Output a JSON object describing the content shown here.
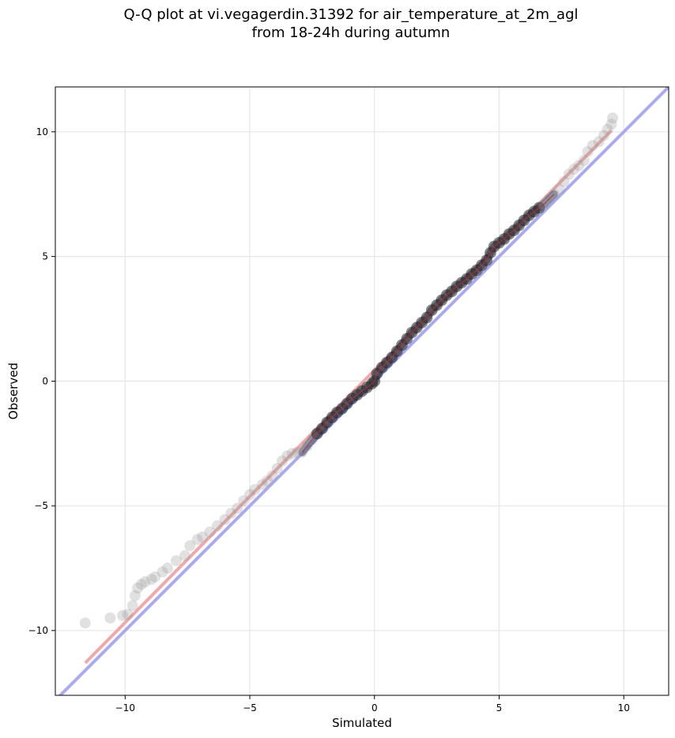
{
  "chart_data": {
    "type": "scatter",
    "title_line_1": "Q-Q plot at vi.vegagerdin.31392 for air_temperature_at_2m_agl",
    "title_line_2": "from 18-24h during autumn",
    "xlabel": "Simulated",
    "ylabel": "Observed",
    "xlim": [
      -12.8,
      11.8
    ],
    "ylim": [
      -12.6,
      11.8
    ],
    "x_ticks": [
      -10,
      -5,
      0,
      5,
      10
    ],
    "y_ticks": [
      -10,
      -5,
      0,
      5,
      10
    ],
    "x_tick_labels": [
      "−10",
      "−5",
      "0",
      "5",
      "10"
    ],
    "y_tick_labels": [
      "−10",
      "−5",
      "0",
      "5",
      "10"
    ],
    "grid": true,
    "identity_line": {
      "x": [
        -12.8,
        11.8
      ],
      "y": [
        -12.8,
        11.8
      ],
      "color": "#aaaaf0"
    },
    "fit_line": {
      "x": [
        -11.6,
        9.5
      ],
      "y": [
        -11.3,
        10.05
      ],
      "color": "#f0a8a8"
    },
    "colors": {
      "points": "#bdbdbd",
      "dense": "#1f2a55",
      "accent": "#b03030"
    },
    "quantiles": [
      [
        -11.6,
        -9.7
      ],
      [
        -10.6,
        -9.5
      ],
      [
        -10.1,
        -9.4
      ],
      [
        -9.9,
        -9.35
      ],
      [
        -9.7,
        -9.0
      ],
      [
        -9.6,
        -8.6
      ],
      [
        -9.5,
        -8.3
      ],
      [
        -9.35,
        -8.15
      ],
      [
        -9.2,
        -8.05
      ],
      [
        -8.95,
        -7.95
      ],
      [
        -8.8,
        -7.85
      ],
      [
        -8.5,
        -7.65
      ],
      [
        -8.3,
        -7.5
      ],
      [
        -7.95,
        -7.2
      ],
      [
        -7.6,
        -7.0
      ],
      [
        -7.4,
        -6.6
      ],
      [
        -7.1,
        -6.35
      ],
      [
        -6.9,
        -6.25
      ],
      [
        -6.6,
        -6.05
      ],
      [
        -6.3,
        -5.8
      ],
      [
        -6.0,
        -5.55
      ],
      [
        -5.75,
        -5.3
      ],
      [
        -5.5,
        -5.1
      ],
      [
        -5.25,
        -4.8
      ],
      [
        -5.0,
        -4.55
      ],
      [
        -4.8,
        -4.35
      ],
      [
        -4.5,
        -4.15
      ],
      [
        -4.3,
        -4.0
      ],
      [
        -4.1,
        -3.8
      ],
      [
        -3.9,
        -3.5
      ],
      [
        -3.7,
        -3.2
      ],
      [
        -3.5,
        -3.0
      ],
      [
        -3.3,
        -2.9
      ],
      [
        -3.1,
        -2.85
      ],
      [
        -2.9,
        -2.85
      ],
      [
        -2.7,
        -2.6
      ],
      [
        -2.5,
        -2.35
      ],
      [
        -2.3,
        -2.1
      ],
      [
        -2.1,
        -1.9
      ],
      [
        -1.9,
        -1.65
      ],
      [
        -1.7,
        -1.45
      ],
      [
        -1.5,
        -1.25
      ],
      [
        -1.3,
        -1.1
      ],
      [
        -1.1,
        -0.9
      ],
      [
        -0.9,
        -0.7
      ],
      [
        -0.7,
        -0.55
      ],
      [
        -0.5,
        -0.4
      ],
      [
        -0.3,
        -0.25
      ],
      [
        -0.1,
        -0.1
      ],
      [
        0.0,
        0.0
      ],
      [
        0.1,
        0.3
      ],
      [
        0.3,
        0.55
      ],
      [
        0.5,
        0.75
      ],
      [
        0.7,
        0.95
      ],
      [
        0.9,
        1.2
      ],
      [
        1.1,
        1.45
      ],
      [
        1.3,
        1.7
      ],
      [
        1.5,
        1.95
      ],
      [
        1.7,
        2.15
      ],
      [
        1.9,
        2.35
      ],
      [
        2.1,
        2.55
      ],
      [
        2.3,
        2.85
      ],
      [
        2.5,
        3.05
      ],
      [
        2.7,
        3.25
      ],
      [
        2.9,
        3.45
      ],
      [
        3.1,
        3.6
      ],
      [
        3.3,
        3.8
      ],
      [
        3.5,
        3.95
      ],
      [
        3.7,
        4.1
      ],
      [
        3.9,
        4.3
      ],
      [
        4.1,
        4.45
      ],
      [
        4.3,
        4.65
      ],
      [
        4.5,
        4.85
      ],
      [
        4.65,
        5.15
      ],
      [
        4.8,
        5.4
      ],
      [
        5.0,
        5.55
      ],
      [
        5.2,
        5.7
      ],
      [
        5.4,
        5.9
      ],
      [
        5.6,
        6.05
      ],
      [
        5.8,
        6.25
      ],
      [
        6.0,
        6.45
      ],
      [
        6.2,
        6.65
      ],
      [
        6.4,
        6.8
      ],
      [
        6.6,
        6.95
      ],
      [
        6.8,
        7.1
      ],
      [
        7.0,
        7.3
      ],
      [
        7.2,
        7.5
      ],
      [
        7.4,
        7.7
      ],
      [
        7.6,
        8.0
      ],
      [
        7.8,
        8.3
      ],
      [
        8.0,
        8.5
      ],
      [
        8.2,
        8.65
      ],
      [
        8.4,
        8.85
      ],
      [
        8.55,
        9.2
      ],
      [
        8.75,
        9.45
      ],
      [
        9.0,
        9.6
      ],
      [
        9.2,
        9.85
      ],
      [
        9.35,
        10.1
      ],
      [
        9.5,
        10.3
      ],
      [
        9.55,
        10.55
      ]
    ]
  }
}
